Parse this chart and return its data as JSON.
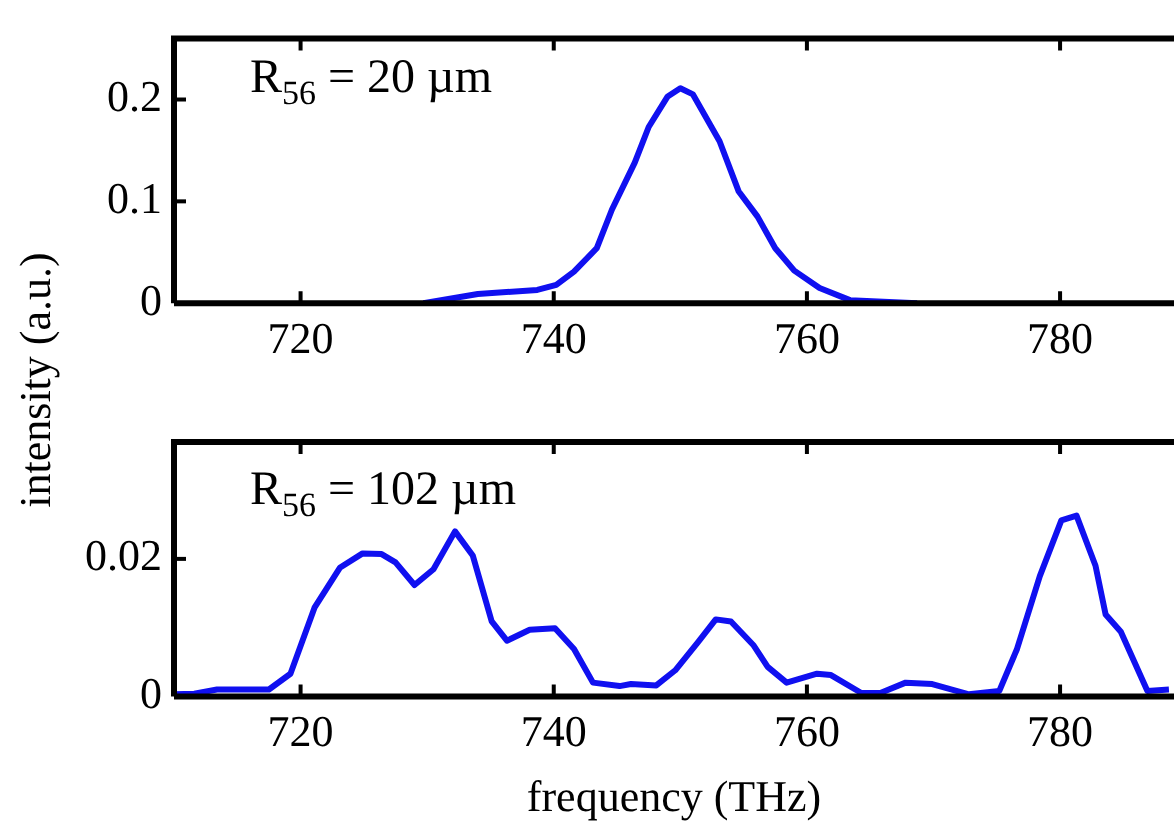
{
  "chart_data": [
    {
      "type": "line",
      "ylabel": "intensity (a.u.)",
      "annotations": [
        "R$_{56}$ = 20 µm"
      ],
      "xlim": [
        710,
        789
      ],
      "xticks": [
        720,
        740,
        760,
        780
      ],
      "ylim": [
        0,
        0.26
      ],
      "yticks": [
        0,
        0.1,
        0.2
      ],
      "grid": false,
      "legend": false,
      "marker": "none",
      "line_style": "solid",
      "series": [
        {
          "color": "#1010f0",
          "x": [
            729.7,
            734,
            738.7,
            740.2,
            741.6,
            743.4,
            744.6,
            746.4,
            747.5,
            749,
            750,
            751,
            753.1,
            754.6,
            756.1,
            757.5,
            759,
            761,
            763.4,
            768.7
          ],
          "values": [
            0,
            0.009,
            0.013,
            0.018,
            0.031,
            0.054,
            0.092,
            0.138,
            0.173,
            0.203,
            0.211,
            0.205,
            0.159,
            0.11,
            0.085,
            0.054,
            0.032,
            0.015,
            0.003,
            0
          ]
        }
      ]
    },
    {
      "type": "line",
      "xlabel": "frequency (THz)",
      "annotations": [
        "R$_{56}$ = 102 µm"
      ],
      "xlim": [
        710,
        789
      ],
      "xticks": [
        720,
        740,
        760,
        780
      ],
      "ylim": [
        0,
        0.037
      ],
      "yticks": [
        0,
        0.02
      ],
      "grid": false,
      "legend": false,
      "marker": "none",
      "line_style": "solid",
      "series": [
        {
          "color": "#1010f0",
          "x": [
            710,
            711.6,
            713.4,
            717.5,
            719.2,
            721.1,
            723.1,
            724.9,
            726.4,
            727.5,
            729,
            730.5,
            732.2,
            733.6,
            735.1,
            736.3,
            738.1,
            740.1,
            741.6,
            743.1,
            745.2,
            746.1,
            748.1,
            749.6,
            751.4,
            752.8,
            754,
            755.8,
            756.9,
            758.4,
            760.8,
            761.9,
            764.3,
            765.8,
            767.8,
            769.9,
            772.8,
            775.2,
            776.6,
            778.4,
            780.1,
            781.3,
            782.8,
            783.6,
            784.8,
            786.9,
            788.6
          ],
          "values": [
            0.0003,
            0.0004,
            0.001,
            0.001,
            0.0033,
            0.0129,
            0.0187,
            0.0208,
            0.0207,
            0.0195,
            0.0162,
            0.0185,
            0.024,
            0.0205,
            0.0109,
            0.0081,
            0.0097,
            0.0099,
            0.0069,
            0.002,
            0.0015,
            0.0018,
            0.0016,
            0.0038,
            0.0079,
            0.0112,
            0.0109,
            0.0074,
            0.0043,
            0.002,
            0.0033,
            0.0031,
            0.0005,
            0.0005,
            0.002,
            0.0018,
            0.0003,
            0.0008,
            0.0069,
            0.0175,
            0.0256,
            0.0263,
            0.019,
            0.0119,
            0.0094,
            0.0008,
            0.001
          ]
        }
      ]
    }
  ]
}
